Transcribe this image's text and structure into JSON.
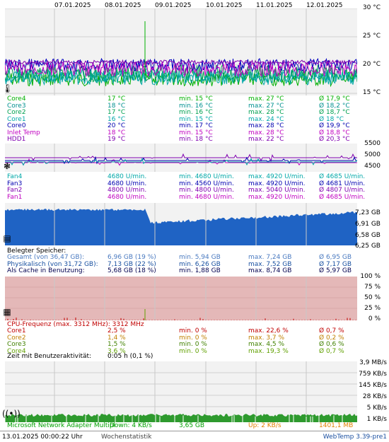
{
  "dates": [
    "07.01.2025",
    "08.01.2025",
    "09.01.2025",
    "10.01.2025",
    "11.01.2025",
    "12.01.2025"
  ],
  "colors": {
    "core4": "#00b000",
    "core3": "#00a0a0",
    "core2": "#00b060",
    "core1": "#00a8a8",
    "core0": "#0000c0",
    "inlet": "#c000c0",
    "hdd": "#8000c0"
  },
  "temp": {
    "ticks": [
      "30 °C",
      "25 °C",
      "20 °C",
      "15 °C"
    ],
    "rows": [
      {
        "name": "Core4",
        "cur": "17 °C",
        "min": "min. 15 °C",
        "max": "max. 27 °C",
        "avg": "Ø 17,9 °C",
        "color": "#00b000"
      },
      {
        "name": "Core3",
        "cur": "18 °C",
        "min": "min. 16 °C",
        "max": "max. 27 °C",
        "avg": "Ø 18,2 °C",
        "color": "#009090"
      },
      {
        "name": "Core2",
        "cur": "17 °C",
        "min": "min. 16 °C",
        "max": "max. 28 °C",
        "avg": "Ø 18,7 °C",
        "color": "#00a050"
      },
      {
        "name": "Core1",
        "cur": "16 °C",
        "min": "min. 15 °C",
        "max": "max. 24 °C",
        "avg": "Ø 18 °C",
        "color": "#00a8a8"
      },
      {
        "name": "Core0",
        "cur": "20 °C",
        "min": "min. 17 °C",
        "max": "max. 28 °C",
        "avg": "Ø 19,9 °C",
        "color": "#0000b0"
      },
      {
        "name": "Inlet Temp",
        "cur": "18 °C",
        "min": "min. 15 °C",
        "max": "max. 28 °C",
        "avg": "Ø 18,8 °C",
        "color": "#c000c0"
      },
      {
        "name": "HDD1",
        "cur": "19 °C",
        "min": "min. 18 °C",
        "max": "max. 22 °C",
        "avg": "Ø 20,3 °C",
        "color": "#8000b0"
      }
    ]
  },
  "fan": {
    "ticks": [
      "5500",
      "5000",
      "4500"
    ],
    "rows": [
      {
        "name": "Fan4",
        "cur": "4680 U/min.",
        "min": "min. 4680 U/min.",
        "max": "max. 4920 U/min.",
        "avg": "Ø 4685 U/min.",
        "color": "#00a8a8"
      },
      {
        "name": "Fan3",
        "cur": "4680 U/min.",
        "min": "min. 4560 U/min.",
        "max": "max. 4920 U/min.",
        "avg": "Ø 4681 U/min.",
        "color": "#0000b0"
      },
      {
        "name": "Fan2",
        "cur": "4800 U/min.",
        "min": "min. 4800 U/min.",
        "max": "max. 5040 U/min.",
        "avg": "Ø 4807 U/min.",
        "color": "#8000b0"
      },
      {
        "name": "Fan1",
        "cur": "4680 U/min.",
        "min": "min. 4680 U/min.",
        "max": "max. 4920 U/min.",
        "avg": "Ø 4685 U/min.",
        "color": "#c000c0"
      }
    ]
  },
  "mem": {
    "ticks": [
      "7,23 GB",
      "6,91 GB",
      "6,58 GB",
      "6,25 GB"
    ],
    "title": "Belegter Speicher:",
    "rows": [
      {
        "name": "Gesamt (von 36,47 GB):",
        "cur": "6,96 GB (19 %)",
        "min": "min. 5,94 GB",
        "max": "max. 7,24 GB",
        "avg": "Ø 6,95 GB",
        "color": "#4a7ac0"
      },
      {
        "name": "Physikalisch (von 31,72 GB):",
        "cur": "7,13 GB (22 %)",
        "min": "min. 6,26 GB",
        "max": "max. 7,52 GB",
        "avg": "Ø 7,17 GB",
        "color": "#1850a0"
      },
      {
        "name": "Als Cache in Benutzung:",
        "cur": "5,68 GB (18 %)",
        "min": "min. 1,88 GB",
        "max": "max. 8,74 GB",
        "avg": "Ø 5,97 GB",
        "color": "#000050"
      }
    ]
  },
  "cpu": {
    "ticks": [
      "100 %",
      "75 %",
      "50 %",
      "25 %",
      "0 %"
    ],
    "title": "CPU-Frequenz (max. 3312 MHz): 3312 MHz",
    "rows": [
      {
        "name": "Core1",
        "cur": "2,5 %",
        "min": "min. 0 %",
        "max": "max. 22,6 %",
        "avg": "Ø 0,7 %",
        "color": "#c00000"
      },
      {
        "name": "Core2",
        "cur": "1,4 %",
        "min": "min. 0 %",
        "max": "max. 3,7 %",
        "avg": "Ø 0,2 %",
        "color": "#c08000"
      },
      {
        "name": "Core3",
        "cur": "1,5 %",
        "min": "min. 0 %",
        "max": "max. 4,5 %",
        "avg": "Ø 0,6 %",
        "color": "#408000"
      },
      {
        "name": "Core4",
        "cur": "3,6 %",
        "min": "min. 0 %",
        "max": "max. 19,3 %",
        "avg": "Ø 0,7 %",
        "color": "#60a000"
      }
    ],
    "activity_label": "Zeit mit Benutzeraktivität:",
    "activity_value": "0:05 h (0,1 %)"
  },
  "net": {
    "ticks": [
      "3,9 MB/s",
      "759 KB/s",
      "145 KB/s",
      "28 KB/s",
      "5 KB/s",
      "1 KB/s"
    ],
    "adapter": "Microsoft Network Adapter Multipl",
    "down": "Down: 4 KB/s",
    "down_total": "3,65 GB",
    "up": "Up: 2 KB/s",
    "up_total": "1401,1 MB"
  },
  "footer": {
    "timestamp": "13.01.2025 00:00:22 Uhr",
    "mode": "Wochenstatistik",
    "version": "WebTemp 3.39-pre1"
  }
}
